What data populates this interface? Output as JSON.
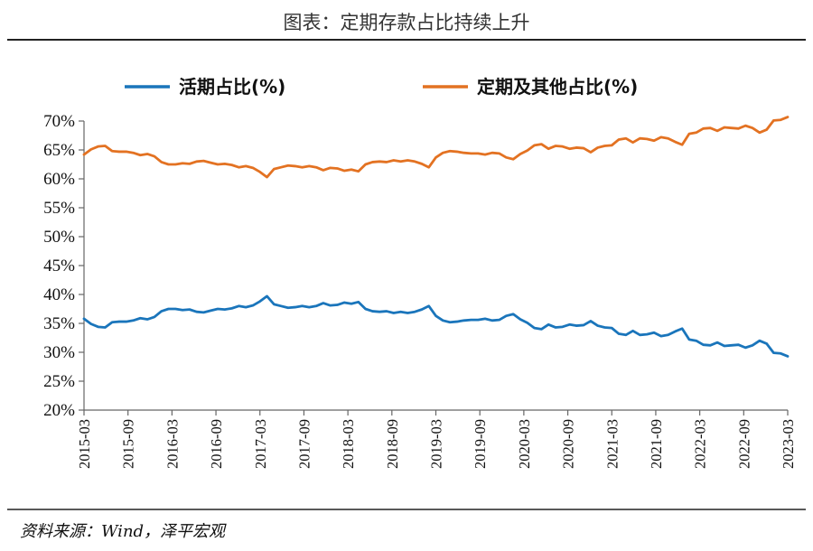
{
  "header": {
    "title": "图表：定期存款占比持续上升"
  },
  "footer": {
    "source": "资料来源：Wind，泽平宏观"
  },
  "chart_data": {
    "type": "line",
    "title": "图表：定期存款占比持续上升",
    "xlabel": "",
    "ylabel": "",
    "ylim": [
      20,
      70
    ],
    "y_ticks": [
      "20%",
      "25%",
      "30%",
      "35%",
      "40%",
      "45%",
      "50%",
      "55%",
      "60%",
      "65%",
      "70%"
    ],
    "x_ticks": [
      "2015-03",
      "2015-09",
      "2016-03",
      "2016-09",
      "2017-03",
      "2017-09",
      "2018-03",
      "2018-09",
      "2019-03",
      "2019-09",
      "2020-03",
      "2020-09",
      "2021-03",
      "2021-09",
      "2022-03",
      "2022-09",
      "2023-03"
    ],
    "x_start": "2015-03",
    "x_end": "2023-03",
    "legend_position": "top",
    "grid": false,
    "series": [
      {
        "name": "活期占比(%)",
        "color": "#1a75bb",
        "values": [
          35.8,
          34.9,
          34.4,
          34.3,
          35.2,
          35.3,
          35.3,
          35.5,
          35.9,
          35.7,
          36.1,
          37.1,
          37.5,
          37.5,
          37.3,
          37.4,
          37.0,
          36.9,
          37.2,
          37.5,
          37.4,
          37.6,
          38.0,
          37.8,
          38.1,
          38.8,
          39.7,
          38.3,
          38.0,
          37.7,
          37.8,
          38.0,
          37.8,
          38.0,
          38.5,
          38.1,
          38.2,
          38.6,
          38.4,
          38.7,
          37.5,
          37.1,
          37.0,
          37.1,
          36.8,
          37.0,
          36.8,
          37.0,
          37.4,
          38.0,
          36.3,
          35.5,
          35.2,
          35.3,
          35.5,
          35.6,
          35.6,
          35.8,
          35.5,
          35.6,
          36.3,
          36.6,
          35.7,
          35.1,
          34.2,
          34.0,
          34.8,
          34.3,
          34.4,
          34.8,
          34.6,
          34.7,
          35.4,
          34.6,
          34.3,
          34.2,
          33.2,
          33.0,
          33.7,
          33.0,
          33.1,
          33.4,
          32.8,
          33.0,
          33.6,
          34.1,
          32.2,
          32.0,
          31.3,
          31.2,
          31.7,
          31.1,
          31.2,
          31.3,
          30.8,
          31.2,
          32.0,
          31.5,
          29.9,
          29.8,
          29.3
        ]
      },
      {
        "name": "定期及其他占比(%)",
        "color": "#e37222",
        "values": [
          64.2,
          65.1,
          65.6,
          65.7,
          64.8,
          64.7,
          64.7,
          64.5,
          64.1,
          64.3,
          63.9,
          62.9,
          62.5,
          62.5,
          62.7,
          62.6,
          63.0,
          63.1,
          62.8,
          62.5,
          62.6,
          62.4,
          62.0,
          62.2,
          61.9,
          61.2,
          60.3,
          61.7,
          62.0,
          62.3,
          62.2,
          62.0,
          62.2,
          62.0,
          61.5,
          61.9,
          61.8,
          61.4,
          61.6,
          61.3,
          62.5,
          62.9,
          63.0,
          62.9,
          63.2,
          63.0,
          63.2,
          63.0,
          62.6,
          62.0,
          63.7,
          64.5,
          64.8,
          64.7,
          64.5,
          64.4,
          64.4,
          64.2,
          64.5,
          64.4,
          63.7,
          63.4,
          64.3,
          64.9,
          65.8,
          66.0,
          65.2,
          65.7,
          65.6,
          65.2,
          65.4,
          65.3,
          64.6,
          65.4,
          65.7,
          65.8,
          66.8,
          67.0,
          66.3,
          67.0,
          66.9,
          66.6,
          67.2,
          67.0,
          66.4,
          65.9,
          67.8,
          68.0,
          68.7,
          68.8,
          68.3,
          68.9,
          68.8,
          68.7,
          69.2,
          68.8,
          68.0,
          68.5,
          70.1,
          70.2,
          70.7
        ]
      }
    ]
  }
}
